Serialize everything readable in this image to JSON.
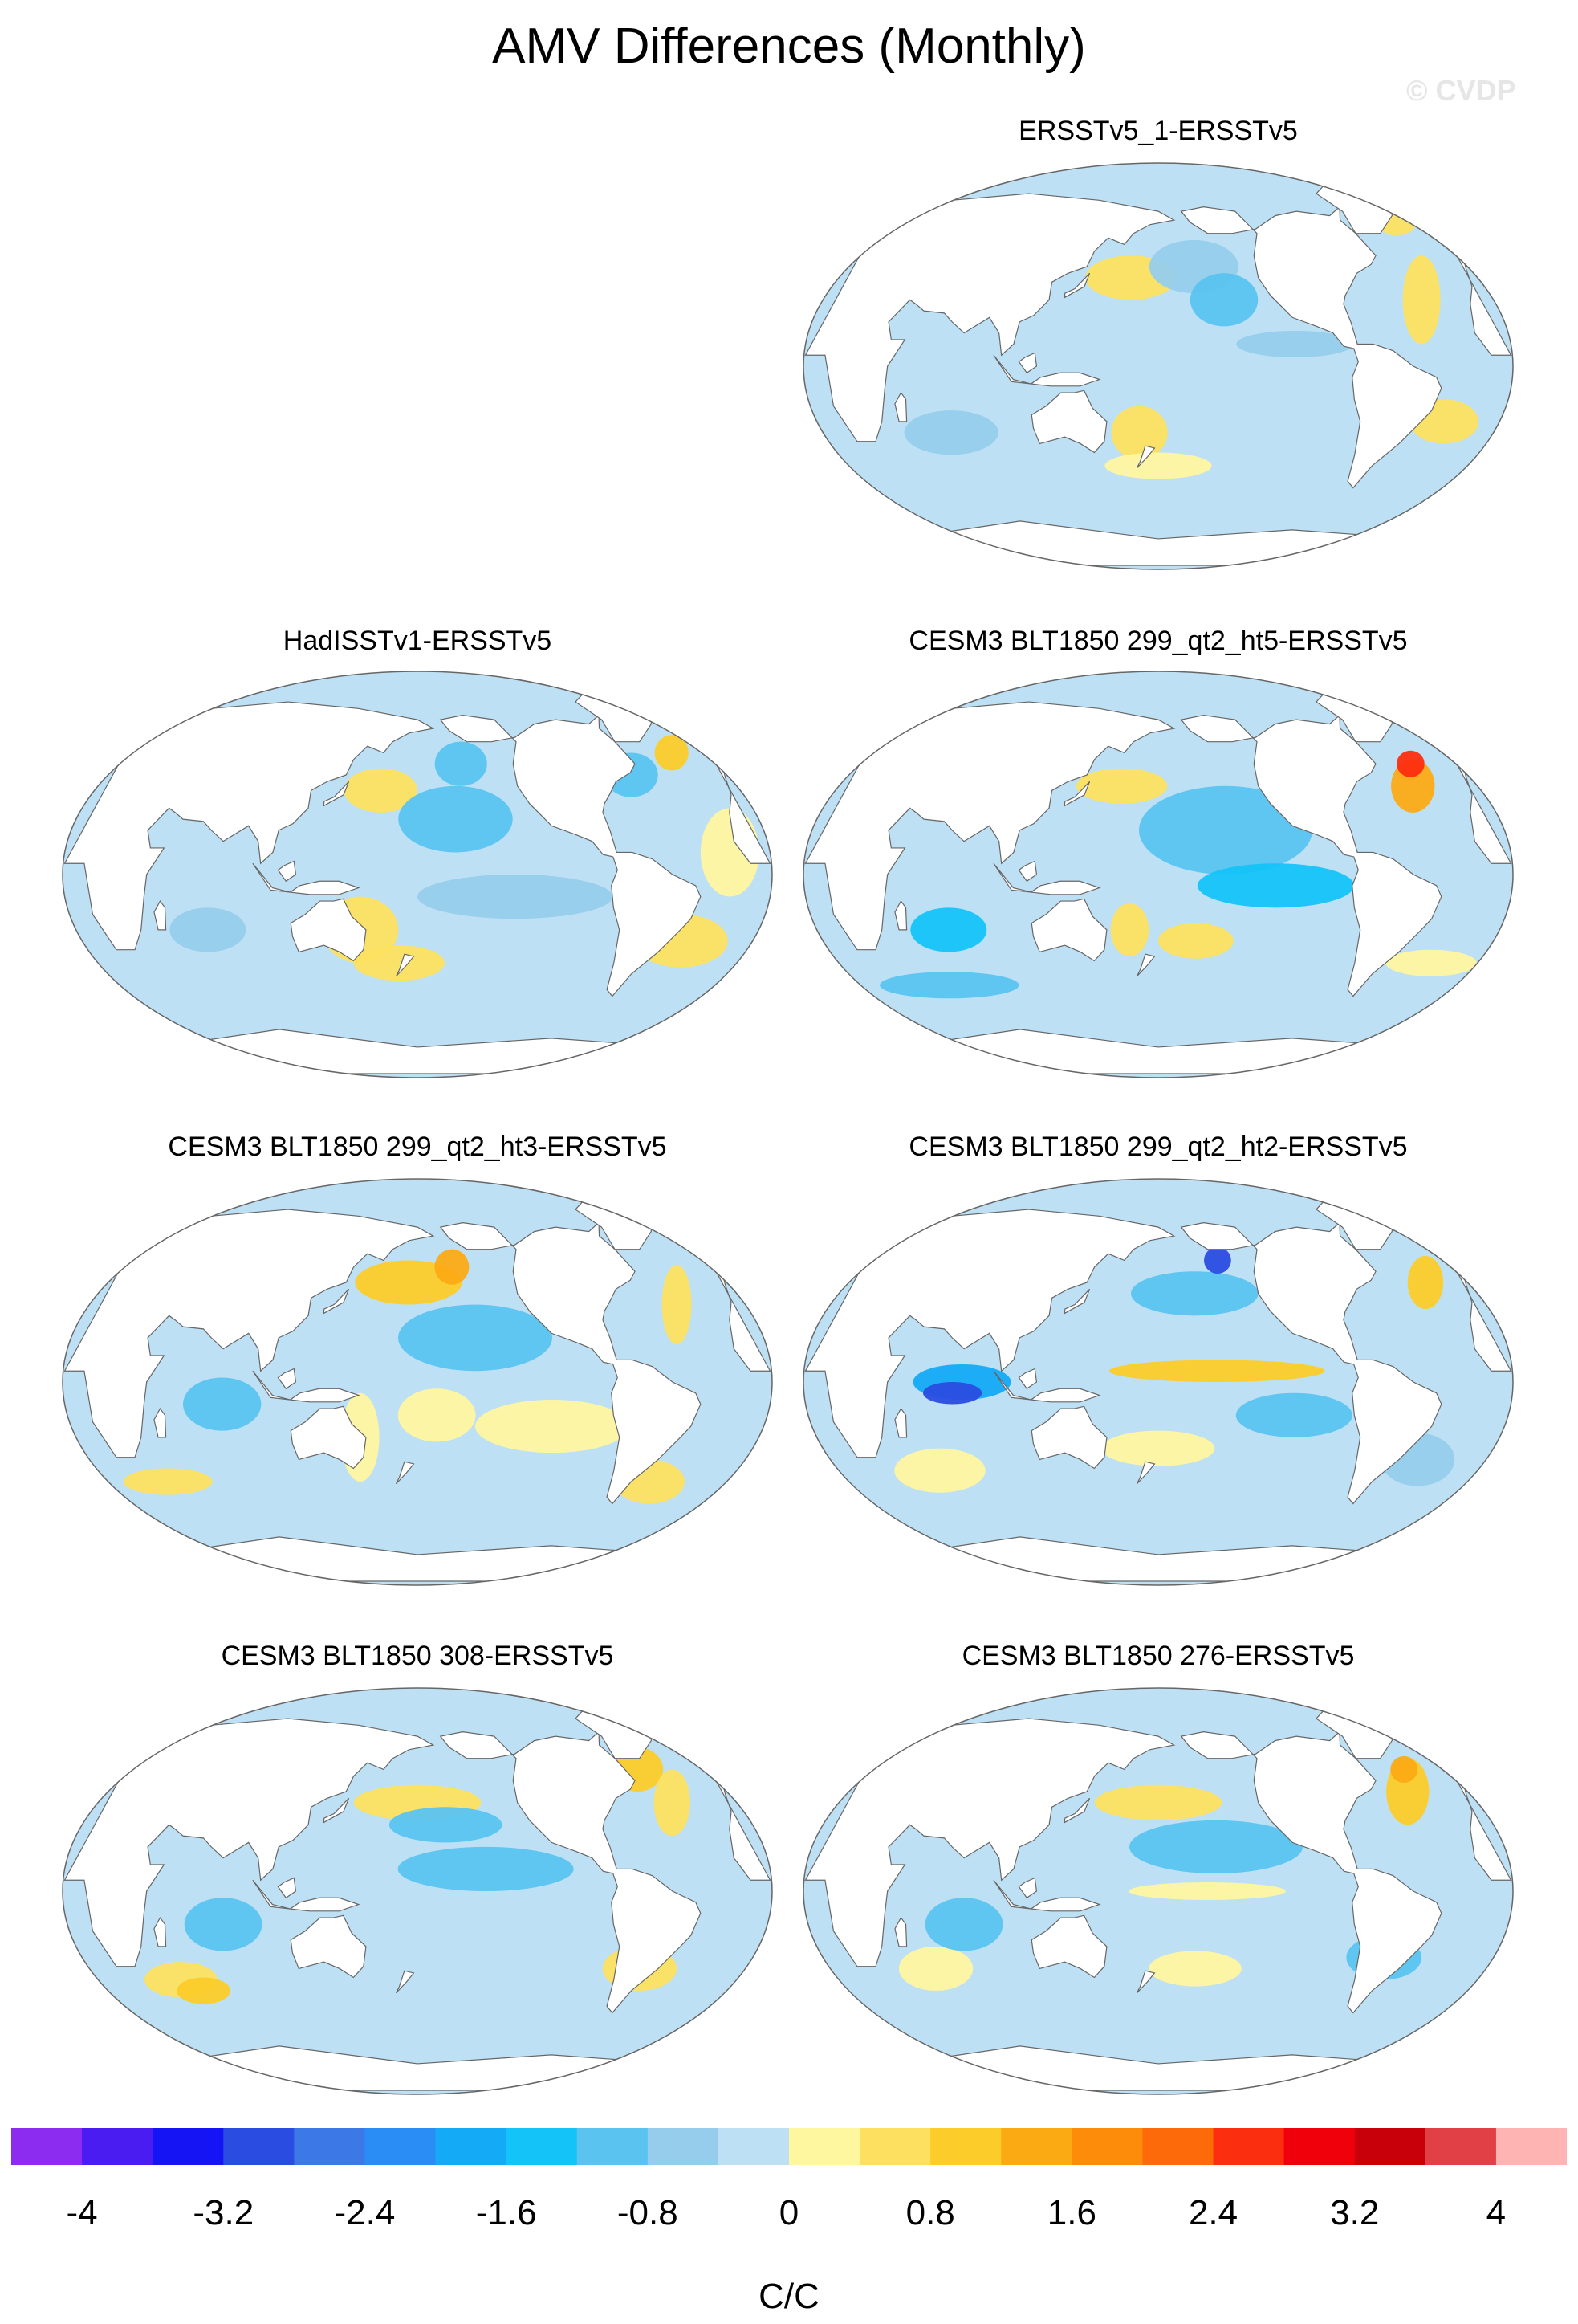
{
  "title": "AMV Differences (Monthly)",
  "watermark": "© CVDP",
  "panels": [
    {
      "title": "ERSSTv5_1-ERSSTv5",
      "pattern": "obs_1"
    },
    {
      "title": "HadISSTv1-ERSSTv5",
      "pattern": "hadisst"
    },
    {
      "title": "CESM3 BLT1850 299_qt2_ht5-ERSSTv5",
      "pattern": "ht5"
    },
    {
      "title": "CESM3 BLT1850 299_qt2_ht3-ERSSTv5",
      "pattern": "ht3"
    },
    {
      "title": "CESM3 BLT1850 299_qt2_ht2-ERSSTv5",
      "pattern": "ht2"
    },
    {
      "title": "CESM3 BLT1850 308-ERSSTv5",
      "pattern": "b308"
    },
    {
      "title": "CESM3 BLT1850 276-ERSSTv5",
      "pattern": "b276"
    }
  ],
  "colorbar": {
    "unit": "C/C",
    "levels": [
      -4,
      -3.6,
      -3.2,
      -2.8,
      -2.4,
      -2.0,
      -1.6,
      -1.2,
      -0.8,
      -0.4,
      0,
      0.4,
      0.8,
      1.2,
      1.6,
      2.0,
      2.4,
      2.8,
      3.2,
      3.6,
      4
    ],
    "tick_labels": [
      "-4",
      "-3.2",
      "-2.4",
      "-1.6",
      "-0.8",
      "0",
      "0.8",
      "1.6",
      "2.4",
      "3.2",
      "4"
    ],
    "colors": [
      "#8b2cf0",
      "#4b1cf2",
      "#1414f5",
      "#2a4ce0",
      "#3c78e6",
      "#2a8cf5",
      "#14aaf5",
      "#14c3f8",
      "#5ac3f0",
      "#96cdec",
      "#bee0f4",
      "#fff6a0",
      "#fde060",
      "#fccc2a",
      "#fcaa14",
      "#fc8c0a",
      "#fc6a0a",
      "#fc2e10",
      "#f0000a",
      "#c8000a",
      "#e04046",
      "#ffb4b4"
    ]
  },
  "map_colors": {
    "ocean_base": "#bee0f4",
    "land": "#ffffff",
    "outline": "#666666"
  }
}
